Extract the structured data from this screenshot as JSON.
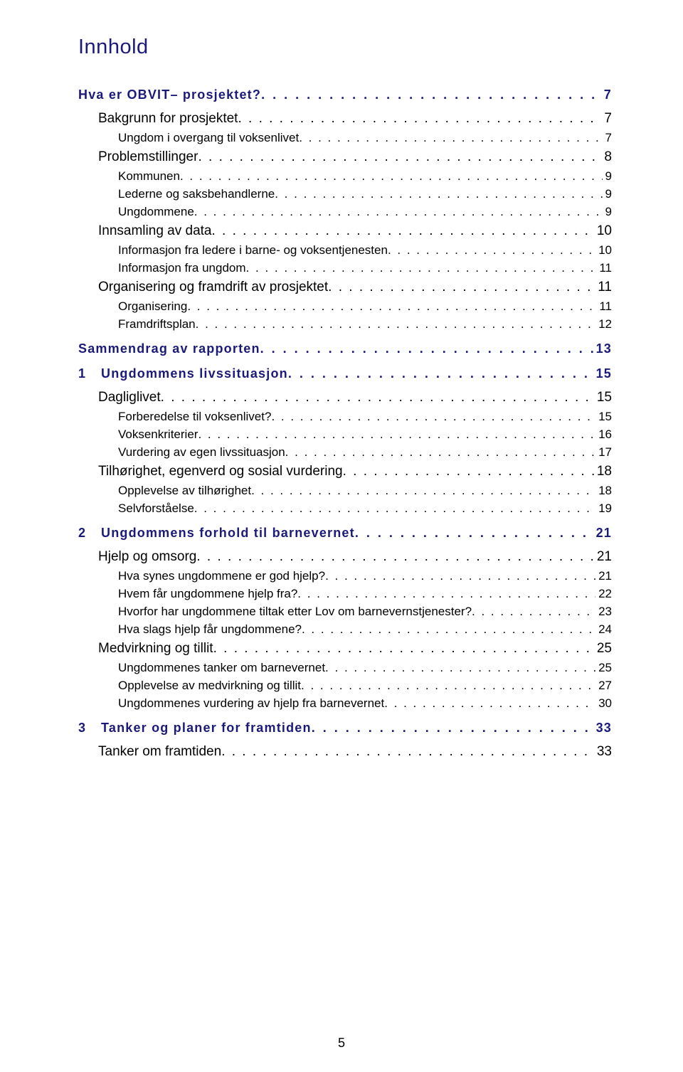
{
  "title": "Innhold",
  "leader_dots": ". . . . . . . . . . . . . . . . . . . . . . . . . . . . . . . . . . . . . . . . . . . . . . . . . . . . . . . . . . . . . . . . . . . . . . . . . . . . . . . . . . . . . . . . . . . . . . . . . . . . . . . . . . . . . . . . . . . . . . . .",
  "page_number": "5",
  "toc": [
    {
      "level": 1,
      "num": "",
      "label": "Hva er OBVIT– prosjektet?",
      "page": "7"
    },
    {
      "level": 2,
      "label": "Bakgrunn for prosjektet",
      "page": "7"
    },
    {
      "level": 3,
      "label": "Ungdom i overgang til voksenlivet",
      "page": "7"
    },
    {
      "level": 2,
      "label": "Problemstillinger",
      "page": "8"
    },
    {
      "level": 3,
      "label": "Kommunen",
      "page": "9"
    },
    {
      "level": 3,
      "label": "Lederne og saksbehandlerne",
      "page": "9"
    },
    {
      "level": 3,
      "label": "Ungdommene",
      "page": "9"
    },
    {
      "level": 2,
      "label": "Innsamling av data",
      "page": "10"
    },
    {
      "level": 3,
      "label": "Informasjon fra ledere i barne- og voksentjenesten",
      "page": "10"
    },
    {
      "level": 3,
      "label": "Informasjon fra ungdom",
      "page": "11"
    },
    {
      "level": 2,
      "label": "Organisering og framdrift av prosjektet",
      "page": "11"
    },
    {
      "level": 3,
      "label": "Organisering",
      "page": "11"
    },
    {
      "level": 3,
      "label": "Framdriftsplan",
      "page": "12"
    },
    {
      "level": 1,
      "num": "",
      "label": "Sammendrag av rapporten",
      "page": "13"
    },
    {
      "level": 1,
      "num": "1",
      "label": "Ungdommens livssituasjon",
      "page": "15"
    },
    {
      "level": 2,
      "label": "Dagliglivet",
      "page": "15"
    },
    {
      "level": 3,
      "label": "Forberedelse til voksenlivet?",
      "page": "15"
    },
    {
      "level": 3,
      "label": "Voksenkriterier",
      "page": "16"
    },
    {
      "level": 3,
      "label": "Vurdering av egen livssituasjon",
      "page": "17"
    },
    {
      "level": 2,
      "label": "Tilhørighet, egenverd og sosial vurdering",
      "page": "18"
    },
    {
      "level": 3,
      "label": "Opplevelse av tilhørighet",
      "page": "18"
    },
    {
      "level": 3,
      "label": "Selvforståelse",
      "page": "19"
    },
    {
      "level": 1,
      "num": "2",
      "label": "Ungdommens forhold til barnevernet",
      "page": "21"
    },
    {
      "level": 2,
      "label": "Hjelp og omsorg",
      "page": "21"
    },
    {
      "level": 3,
      "label": "Hva synes ungdommene er god hjelp?",
      "page": "21"
    },
    {
      "level": 3,
      "label": "Hvem får ungdommene hjelp fra?",
      "page": "22"
    },
    {
      "level": 3,
      "label": "Hvorfor har ungdommene tiltak etter Lov om barnevernstjenester?",
      "page": "23"
    },
    {
      "level": 3,
      "label": "Hva slags hjelp får ungdommene?",
      "page": "24"
    },
    {
      "level": 2,
      "label": "Medvirkning og tillit",
      "page": "25"
    },
    {
      "level": 3,
      "label": "Ungdommenes tanker om barnevernet",
      "page": "25"
    },
    {
      "level": 3,
      "label": "Opplevelse av medvirkning og tillit",
      "page": "27"
    },
    {
      "level": 3,
      "label": "Ungdommenes vurdering av hjelp fra barnevernet",
      "page": "30"
    },
    {
      "level": 1,
      "num": "3",
      "label": "Tanker og planer for framtiden",
      "page": "33"
    },
    {
      "level": 2,
      "label": "Tanker om framtiden",
      "page": "33"
    }
  ]
}
